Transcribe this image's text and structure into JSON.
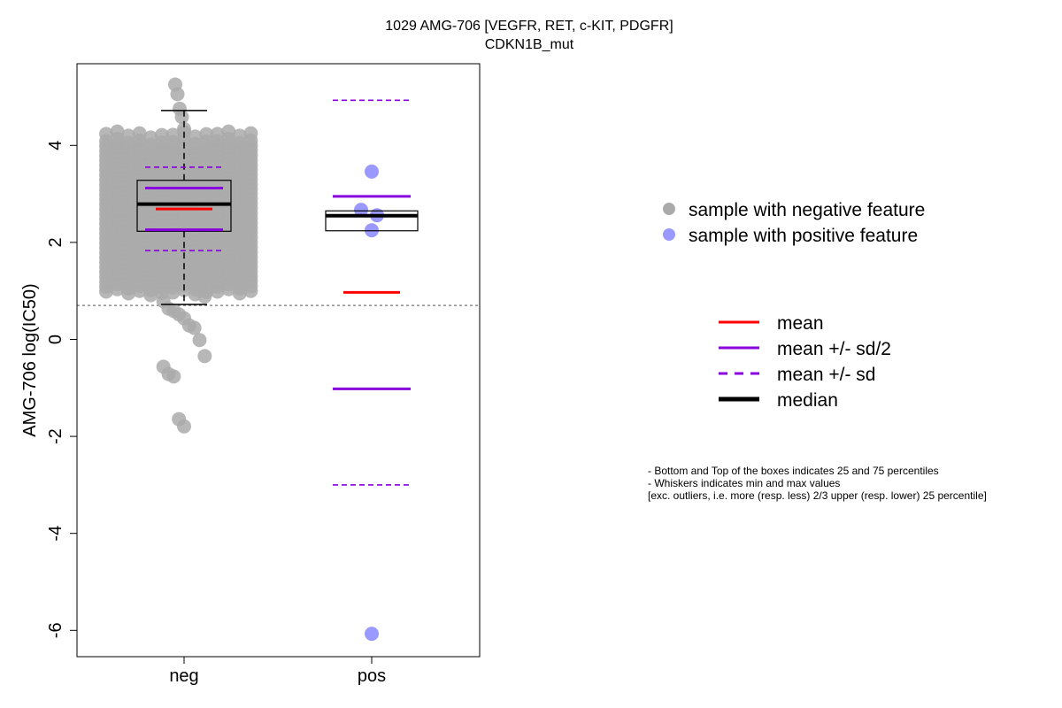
{
  "chart_data": {
    "type": "box-dotplot",
    "title": "1029 AMG-706 [VEGFR, RET, c-KIT, PDGFR]",
    "subtitle": "CDKN1B_mut",
    "ylabel": "AMG-706 log(IC50)",
    "xlabel": "",
    "categories": [
      "neg",
      "pos"
    ],
    "ylim": [
      -6.6,
      5.7
    ],
    "yticks": [
      -6,
      -4,
      -2,
      0,
      2,
      4
    ],
    "threshold_line": 0.7,
    "grid": false,
    "groups": [
      {
        "name": "neg",
        "color": "#aaaaaa",
        "box": {
          "q1": 2.23,
          "median": 2.79,
          "q3": 3.28
        },
        "whiskers": {
          "low": 0.72,
          "high": 4.72
        },
        "mean": 2.69,
        "mean_plus_half_sd": 3.12,
        "mean_minus_half_sd": 2.26,
        "mean_plus_sd": 3.55,
        "mean_minus_sd": 1.83,
        "points": [
          5.22,
          5.02,
          4.72,
          4.55,
          4.3,
          4.25,
          4.2,
          4.1,
          4.05,
          4.0,
          3.95,
          3.9,
          3.85,
          3.8,
          3.75,
          3.7,
          3.65,
          3.6,
          3.55,
          3.5,
          3.45,
          3.4,
          3.35,
          3.3,
          3.25,
          3.2,
          3.15,
          3.1,
          3.05,
          3.0,
          2.95,
          2.9,
          2.85,
          2.8,
          2.75,
          2.7,
          2.65,
          2.6,
          2.55,
          2.5,
          2.45,
          2.4,
          2.35,
          2.3,
          2.25,
          2.2,
          2.15,
          2.1,
          2.05,
          2.0,
          1.95,
          1.9,
          1.85,
          1.8,
          1.75,
          1.7,
          1.65,
          1.6,
          1.55,
          1.5,
          1.45,
          1.4,
          1.35,
          1.3,
          1.25,
          1.2,
          1.15,
          1.1,
          1.05,
          1.0,
          0.95,
          0.85,
          0.75,
          0.6,
          0.55,
          0.48,
          0.4,
          0.25,
          0.2,
          -0.05,
          -0.38,
          -0.6,
          -0.75,
          -0.8,
          -1.68,
          -1.83
        ]
      },
      {
        "name": "pos",
        "color": "#9999ff",
        "box": {
          "q1": 2.24,
          "median": 2.55,
          "q3": 2.65
        },
        "whiskers": {
          "low": 2.24,
          "high": 2.65
        },
        "mean": 0.97,
        "mean_plus_half_sd": 2.95,
        "mean_minus_half_sd": -1.02,
        "mean_plus_sd": 4.93,
        "mean_minus_sd": -3.0,
        "points": [
          3.46,
          2.67,
          2.56,
          2.25,
          -6.07
        ]
      }
    ],
    "legend_points": [
      {
        "label": "sample with negative feature",
        "color": "#aaaaaa"
      },
      {
        "label": "sample with positive feature",
        "color": "#9999ff"
      }
    ],
    "legend_lines": [
      {
        "label": "mean",
        "color": "#ff0000",
        "style": "solid",
        "weight": "normal"
      },
      {
        "label": "mean +/- sd/2",
        "color": "#8800dd",
        "style": "solid",
        "weight": "normal"
      },
      {
        "label": "mean +/- sd",
        "color": "#8800dd",
        "style": "dashed",
        "weight": "normal"
      },
      {
        "label": "median",
        "color": "#000000",
        "style": "solid",
        "weight": "bold"
      }
    ],
    "notes": [
      "- Bottom and Top of the boxes indicates 25 and 75 percentiles",
      "- Whiskers indicates min and max values",
      "[exc. outliers, i.e. more (resp. less) 2/3 upper (resp. lower) 25 percentile]"
    ]
  }
}
